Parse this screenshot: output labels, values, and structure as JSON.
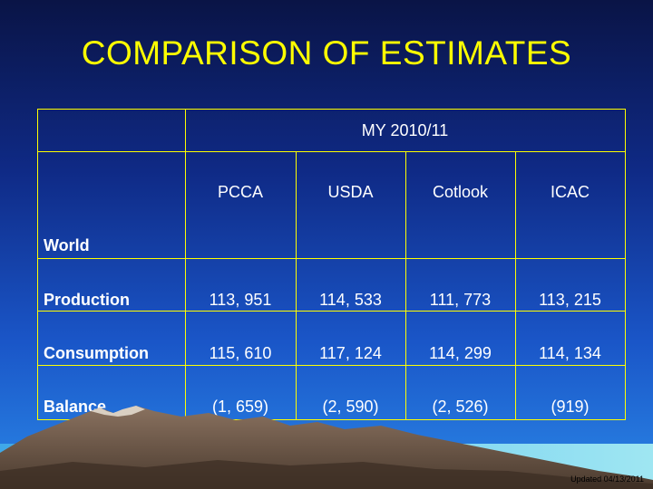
{
  "slide": {
    "title": "COMPARISON OF ESTIMATES",
    "updated": "Updated 04/13/2011"
  },
  "table": {
    "group_header": "MY 2010/11",
    "columns": [
      "PCCA",
      "USDA",
      "Cotlook",
      "ICAC"
    ],
    "section_label": "World",
    "rows": [
      {
        "label": "Production",
        "values": [
          "113, 951",
          "114, 533",
          "111, 773",
          "113, 215"
        ]
      },
      {
        "label": "Consumption",
        "values": [
          "115, 610",
          "117, 124",
          "114, 299",
          "114, 134"
        ]
      },
      {
        "label": "Balance",
        "values": [
          "(1, 659)",
          "(2, 590)",
          "(2, 526)",
          "(919)"
        ]
      }
    ]
  },
  "colors": {
    "title": "#ffff00",
    "grid": "#ffff00",
    "text": "#ffffff",
    "background_top": "#0a1446",
    "background_bottom": "#2a86e6"
  }
}
